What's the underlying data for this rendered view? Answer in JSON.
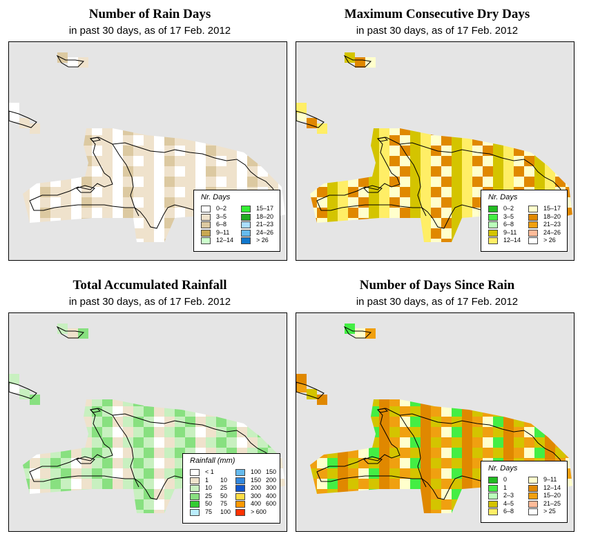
{
  "panels": [
    {
      "id": "rain-days",
      "title": "Number of Rain Days",
      "subtitle": "in past 30 days, as of  17 Feb. 2012",
      "legend": {
        "title": "Nr. Days",
        "items": [
          {
            "label": "0–2",
            "color": "#ffffff"
          },
          {
            "label": "3–5",
            "color": "#efe2cc"
          },
          {
            "label": "6–8",
            "color": "#dcc9a1"
          },
          {
            "label": "9–11",
            "color": "#c8a852"
          },
          {
            "label": "12–14",
            "color": "#ccffcc"
          },
          {
            "label": "15–17",
            "color": "#33ee33"
          },
          {
            "label": "18–20",
            "color": "#22aa22"
          },
          {
            "label": "21–23",
            "color": "#aaddff"
          },
          {
            "label": "24–26",
            "color": "#66bbee"
          },
          {
            "label": "> 26",
            "color": "#1177cc"
          }
        ]
      },
      "grid_fill": [
        "#ffffff",
        "#efe2cc",
        "#ffffff",
        "#efe2cc",
        "#efe2cc",
        "#dcc9a1",
        "#ffffff",
        "#efe2cc"
      ]
    },
    {
      "id": "max-dry-days",
      "title": "Maximum Consecutive Dry Days",
      "subtitle": "in past 30 days, as of  17 Feb. 2012",
      "legend": {
        "title": "Nr. Days",
        "items": [
          {
            "label": "0–2",
            "color": "#22bb22"
          },
          {
            "label": "3–5",
            "color": "#44ee44"
          },
          {
            "label": "6–8",
            "color": "#bbffbb"
          },
          {
            "label": "9–11",
            "color": "#d4c400"
          },
          {
            "label": "12–14",
            "color": "#ffee66"
          },
          {
            "label": "15–17",
            "color": "#ffffcc"
          },
          {
            "label": "18–20",
            "color": "#e08800"
          },
          {
            "label": "21–23",
            "color": "#f0a010"
          },
          {
            "label": "24–26",
            "color": "#ffbb99"
          },
          {
            "label": "> 26",
            "color": "#ffffff"
          }
        ]
      },
      "grid_fill": [
        "#ffee66",
        "#d4c400",
        "#ffffcc",
        "#e08800",
        "#ffee66",
        "#d4c400",
        "#e08800",
        "#ffffcc"
      ]
    },
    {
      "id": "total-rainfall",
      "title": "Total Accumulated Rainfall",
      "subtitle": "in past 30 days, as of  17 Feb. 2012",
      "legend": {
        "title": "Rainfall (mm)",
        "items": [
          {
            "label": "< 1",
            "label2": "",
            "color": "#ffffff"
          },
          {
            "label": "1",
            "label2": "10",
            "color": "#efe2cc"
          },
          {
            "label": "10",
            "label2": "25",
            "color": "#c8f0c0"
          },
          {
            "label": "25",
            "label2": "50",
            "color": "#88e080"
          },
          {
            "label": "50",
            "label2": "75",
            "color": "#33cc33"
          },
          {
            "label": "75",
            "label2": "100",
            "color": "#bbeeff"
          },
          {
            "label": "100",
            "label2": "150",
            "color": "#66bbee"
          },
          {
            "label": "150",
            "label2": "200",
            "color": "#3388dd"
          },
          {
            "label": "200",
            "label2": "300",
            "color": "#1155cc"
          },
          {
            "label": "300",
            "label2": "400",
            "color": "#ffdd44"
          },
          {
            "label": "400",
            "label2": "600",
            "color": "#ff9900"
          },
          {
            "label": "> 600",
            "label2": "",
            "color": "#ff3300"
          }
        ]
      },
      "grid_fill": [
        "#c8f0c0",
        "#efe2cc",
        "#ffffff",
        "#c8f0c0",
        "#88e080",
        "#c8f0c0",
        "#efe2cc",
        "#88e080"
      ]
    },
    {
      "id": "days-since-rain",
      "title": "Number of Days Since Rain",
      "subtitle": "in past 30 days, as of  17 Feb. 2012",
      "legend": {
        "title": "Nr. Days",
        "items": [
          {
            "label": "0",
            "color": "#22bb22"
          },
          {
            "label": "1",
            "color": "#44ee44"
          },
          {
            "label": "2–3",
            "color": "#bbffbb"
          },
          {
            "label": "4–5",
            "color": "#d4c400"
          },
          {
            "label": "6–8",
            "color": "#ffee66"
          },
          {
            "label": "9–11",
            "color": "#ffffcc"
          },
          {
            "label": "12–14",
            "color": "#e08800"
          },
          {
            "label": "15–20",
            "color": "#f0a010"
          },
          {
            "label": "21–25",
            "color": "#ffbb99"
          },
          {
            "label": "> 25",
            "color": "#ffffff"
          }
        ]
      },
      "grid_fill": [
        "#e08800",
        "#d4c400",
        "#f0a010",
        "#d4c400",
        "#e08800",
        "#44ee44",
        "#ffffcc",
        "#f0a010"
      ]
    }
  ]
}
